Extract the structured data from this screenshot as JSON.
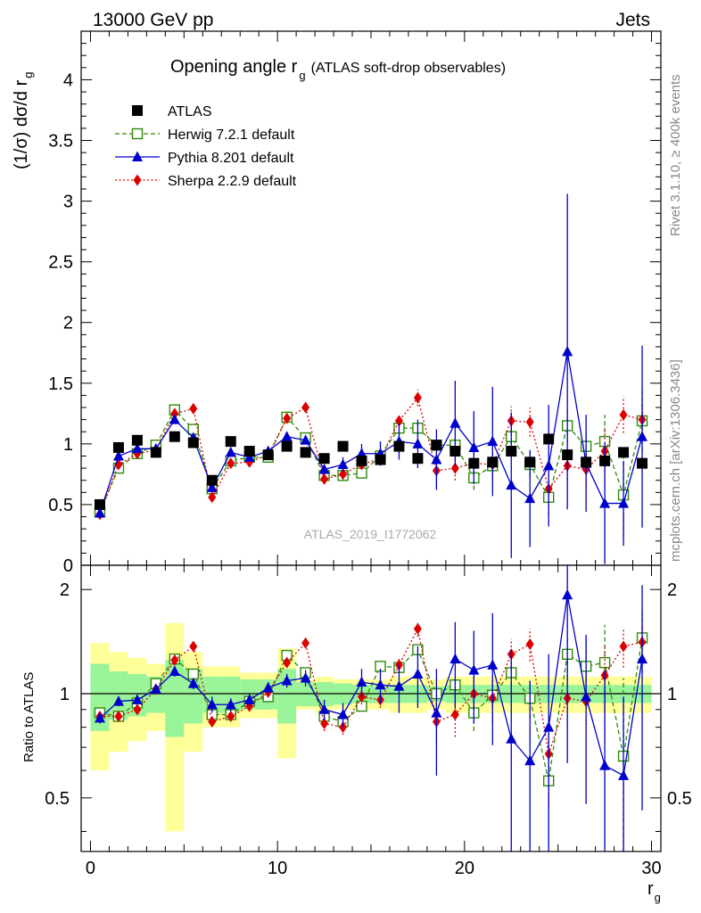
{
  "header": {
    "left": "13000 GeV pp",
    "right": "Jets"
  },
  "side_labels": {
    "rivet": "Rivet 3.1.10, ≥ 400k events",
    "mcplots": "mcplots.cern.ch [arXiv:1306.3436]"
  },
  "chart_data": {
    "type": "scatter",
    "title_main": "Opening angle r",
    "title_sub": "g",
    "title_suffix": "(ATLAS soft-drop observables)",
    "watermark": "ATLAS_2019_I1772062",
    "ylabel_main": "(1/σ) dσ/d r",
    "ylabel_sub": "g",
    "xlabel_main": "r",
    "xlabel_sub": "g",
    "ratio_ylabel": "Ratio to ATLAS",
    "xlim": [
      -0.5,
      30.5
    ],
    "ylim": [
      0,
      4.4
    ],
    "ratio_ylim": [
      0.35,
      2.35
    ],
    "x_ticks": [
      0,
      10,
      20,
      30
    ],
    "x_tick_labels": [
      "0",
      "10",
      "20",
      "30"
    ],
    "y_ticks": [
      0,
      0.5,
      1,
      1.5,
      2,
      2.5,
      3,
      3.5,
      4
    ],
    "y_tick_labels": [
      "0",
      "0.5",
      "1",
      "1.5",
      "2",
      "2.5",
      "3",
      "3.5",
      "4"
    ],
    "ratio_ticks": [
      0.5,
      1,
      2
    ],
    "ratio_tick_labels": [
      "0.5",
      "1",
      "2"
    ],
    "x": [
      0.5,
      1.5,
      2.5,
      3.5,
      4.5,
      5.5,
      6.5,
      7.5,
      8.5,
      9.5,
      10.5,
      11.5,
      12.5,
      13.5,
      14.5,
      15.5,
      16.5,
      17.5,
      18.5,
      19.5,
      20.5,
      21.5,
      22.5,
      23.5,
      24.5,
      25.5,
      26.5,
      27.5,
      28.5,
      29.5
    ],
    "band_outer": [
      0.4,
      0.32,
      0.27,
      0.22,
      0.6,
      0.32,
      0.2,
      0.2,
      0.15,
      0.15,
      0.35,
      0.1,
      0.12,
      0.1,
      0.1,
      0.1,
      0.12,
      0.12,
      0.1,
      0.12,
      0.12,
      0.12,
      0.12,
      0.12,
      0.12,
      0.12,
      0.12,
      0.12,
      0.12,
      0.12
    ],
    "band_inner": [
      0.22,
      0.16,
      0.14,
      0.12,
      0.25,
      0.18,
      0.12,
      0.12,
      0.1,
      0.1,
      0.18,
      0.08,
      0.08,
      0.07,
      0.06,
      0.06,
      0.06,
      0.06,
      0.05,
      0.06,
      0.06,
      0.06,
      0.06,
      0.06,
      0.06,
      0.06,
      0.06,
      0.06,
      0.06,
      0.06
    ],
    "series": [
      {
        "name": "ATLAS",
        "style": "data",
        "color": "#000000",
        "values": [
          0.5,
          0.97,
          1.03,
          0.93,
          1.06,
          1.01,
          0.7,
          1.02,
          0.94,
          0.91,
          0.98,
          0.93,
          0.88,
          0.98,
          0.86,
          0.87,
          0.98,
          0.88,
          0.99,
          0.94,
          0.84,
          0.85,
          0.94,
          0.85,
          1.04,
          0.91,
          0.85,
          0.86,
          0.93,
          0.84
        ]
      },
      {
        "name": "Herwig 7.2.1 default",
        "style": "dashed",
        "marker": "open-square",
        "color": "#2e8b0a",
        "values": [
          0.44,
          0.8,
          0.92,
          0.99,
          1.28,
          1.12,
          0.63,
          0.86,
          0.89,
          0.89,
          1.22,
          1.05,
          0.74,
          0.74,
          0.76,
          0.9,
          1.13,
          1.13,
          0.99,
          0.99,
          0.72,
          0.82,
          1.06,
          0.83,
          0.56,
          1.15,
          0.98,
          1.02,
          0.58,
          1.19
        ],
        "err": [
          0,
          0,
          0,
          0,
          0,
          0,
          0,
          0,
          0,
          0,
          0,
          0,
          0,
          0,
          0,
          0,
          0,
          0,
          0,
          0,
          0.1,
          0.07,
          0.12,
          0.1,
          0.15,
          0.14,
          0.15,
          0.22,
          0.35,
          0.25
        ]
      },
      {
        "name": "Pythia 8.201 default",
        "style": "solid",
        "marker": "filled-triangle",
        "color": "#0000cc",
        "values": [
          0.43,
          0.9,
          0.96,
          0.96,
          1.2,
          1.05,
          0.64,
          0.93,
          0.89,
          0.94,
          1.06,
          1.03,
          0.79,
          0.83,
          0.92,
          0.92,
          1.02,
          1.0,
          0.87,
          1.17,
          0.97,
          1.02,
          0.66,
          0.55,
          0.82,
          1.76,
          0.84,
          0.51,
          0.51,
          1.06
        ],
        "err": [
          0,
          0,
          0,
          0,
          0,
          0,
          0,
          0,
          0,
          0,
          0,
          0,
          0.04,
          0.06,
          0.08,
          0.1,
          0.15,
          0.2,
          0.25,
          0.35,
          0.3,
          0.45,
          0.6,
          0.4,
          0.5,
          1.3,
          0.4,
          0.5,
          0.35,
          0.75
        ]
      },
      {
        "name": "Sherpa 2.2.9 default",
        "style": "dotted",
        "marker": "filled-diamond",
        "color": "#dd0000",
        "values": [
          0.42,
          0.83,
          0.92,
          0.95,
          1.25,
          1.29,
          0.56,
          0.84,
          0.85,
          0.91,
          1.21,
          1.3,
          0.71,
          0.75,
          0.83,
          0.88,
          1.19,
          1.38,
          0.78,
          0.8,
          0.84,
          0.83,
          1.19,
          1.18,
          0.63,
          0.82,
          0.79,
          0.94,
          1.24,
          1.2
        ],
        "err": [
          0,
          0,
          0,
          0,
          0,
          0,
          0,
          0,
          0,
          0,
          0,
          0,
          0,
          0,
          0,
          0,
          0.05,
          0.07,
          0.12,
          0.1,
          0.1,
          0.12,
          0.12,
          0.12,
          0.14,
          0.15,
          0.15,
          0.2,
          0.15,
          0.15
        ]
      }
    ],
    "ratio_series": [
      {
        "name": "Herwig 7.2.1 default",
        "values": [
          0.88,
          0.86,
          0.94,
          1.07,
          1.26,
          1.14,
          0.87,
          0.87,
          0.95,
          0.98,
          1.29,
          1.15,
          0.86,
          0.83,
          0.92,
          1.2,
          1.19,
          1.34,
          1.0,
          1.06,
          0.88,
          0.99,
          1.15,
          0.97,
          0.56,
          1.3,
          1.2,
          1.23,
          0.66,
          1.45
        ],
        "err": [
          0,
          0,
          0,
          0,
          0,
          0,
          0,
          0,
          0,
          0,
          0,
          0,
          0,
          0,
          0,
          0,
          0,
          0,
          0,
          0,
          0.1,
          0.08,
          0.15,
          0.12,
          0.2,
          0.2,
          0.22,
          0.35,
          0.45,
          0.3
        ]
      },
      {
        "name": "Pythia 8.201 default",
        "values": [
          0.85,
          0.95,
          0.96,
          1.03,
          1.16,
          1.07,
          0.93,
          0.93,
          0.96,
          1.04,
          1.09,
          1.11,
          0.9,
          0.87,
          1.08,
          1.06,
          1.05,
          1.14,
          0.88,
          1.26,
          1.17,
          1.21,
          0.74,
          0.64,
          0.8,
          1.93,
          0.98,
          0.62,
          0.58,
          1.26
        ],
        "err": [
          0.03,
          0.03,
          0.03,
          0.03,
          0.04,
          0.04,
          0.05,
          0.04,
          0.04,
          0.04,
          0.05,
          0.06,
          0.06,
          0.07,
          0.1,
          0.12,
          0.17,
          0.23,
          0.3,
          0.35,
          0.35,
          0.5,
          0.6,
          0.45,
          0.5,
          1.3,
          0.5,
          0.55,
          0.4,
          0.8
        ]
      },
      {
        "name": "Sherpa 2.2.9 default",
        "values": [
          0.86,
          0.86,
          0.9,
          1.03,
          1.25,
          1.37,
          0.83,
          0.86,
          0.92,
          1.01,
          1.23,
          1.4,
          0.82,
          0.8,
          0.98,
          0.96,
          1.21,
          1.54,
          0.83,
          0.87,
          1.0,
          0.97,
          1.3,
          1.39,
          0.67,
          0.97,
          0.95,
          1.13,
          1.37,
          1.41
        ],
        "err": [
          0,
          0,
          0,
          0,
          0,
          0,
          0,
          0,
          0,
          0,
          0,
          0,
          0.04,
          0.04,
          0.05,
          0.05,
          0.06,
          0.08,
          0.12,
          0.12,
          0.13,
          0.14,
          0.14,
          0.15,
          0.2,
          0.18,
          0.18,
          0.25,
          0.18,
          0.18
        ]
      }
    ]
  }
}
